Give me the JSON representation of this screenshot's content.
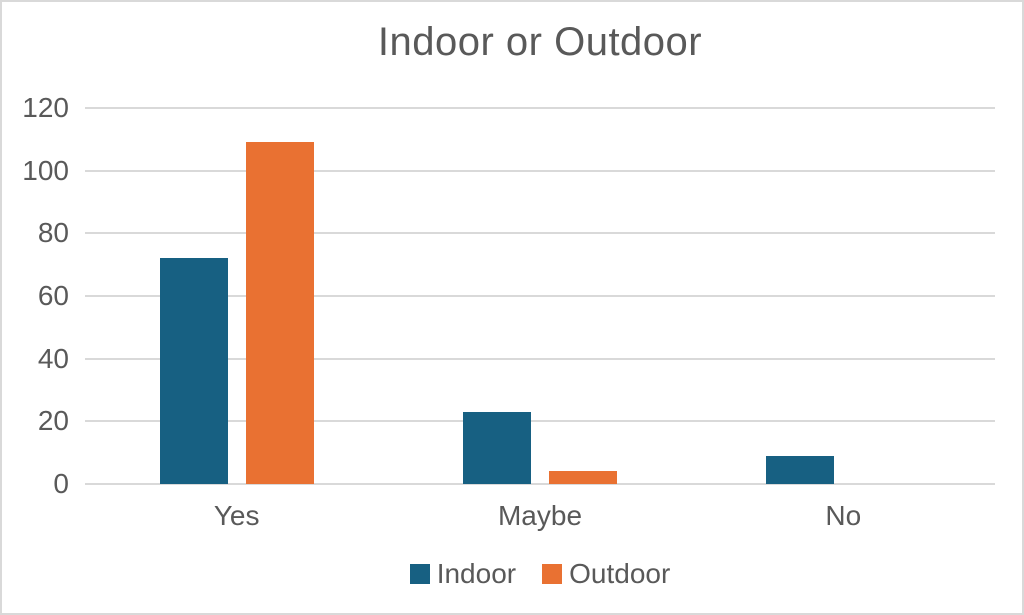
{
  "chart_data": {
    "type": "bar",
    "title": "Indoor or Outdoor",
    "categories": [
      "Yes",
      "Maybe",
      "No"
    ],
    "series": [
      {
        "name": "Indoor",
        "color": "#176082",
        "values": [
          72,
          23,
          9
        ]
      },
      {
        "name": "Outdoor",
        "color": "#E97132",
        "values": [
          109,
          4,
          0
        ]
      }
    ],
    "xlabel": "",
    "ylabel": "",
    "ylim": [
      0,
      120
    ],
    "ytick_step": 20,
    "yticks": [
      0,
      20,
      40,
      60,
      80,
      100,
      120
    ],
    "grid": true,
    "legend_position": "bottom",
    "colors": {
      "grid": "#D9D9D9",
      "text": "#595959",
      "title": "#595959",
      "frame_border": "#D9D9D9",
      "background": "#FFFFFF"
    }
  }
}
